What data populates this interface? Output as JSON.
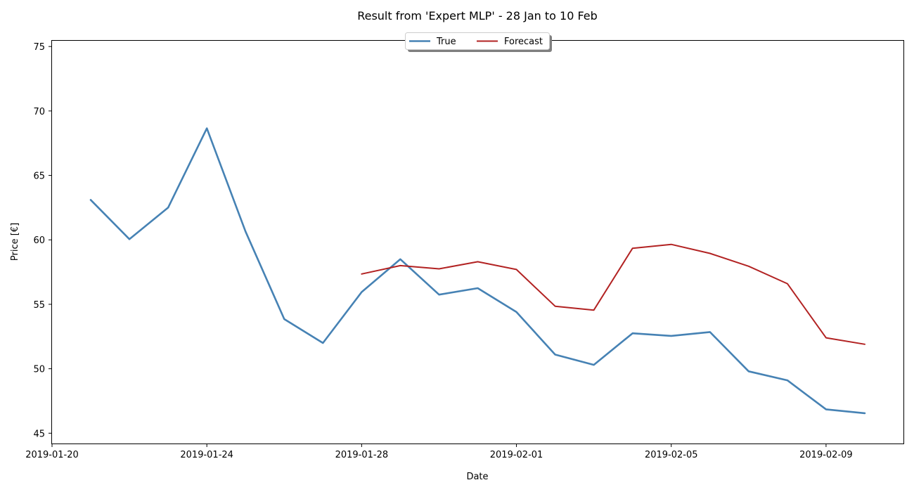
{
  "chart_data": {
    "type": "line",
    "title": "Result from 'Expert MLP' - 28 Jan to 10 Feb",
    "xlabel": "Date",
    "ylabel": "Price [€]",
    "xlim": [
      "2019-01-20",
      "2019-02-11"
    ],
    "ylim": [
      44.2,
      75.5
    ],
    "x_ticks": [
      "2019-01-20",
      "2019-01-24",
      "2019-01-28",
      "2019-02-01",
      "2019-02-05",
      "2019-02-09"
    ],
    "y_ticks": [
      45,
      50,
      55,
      60,
      65,
      70,
      75
    ],
    "legend_position": "top-center",
    "grid": false,
    "series": [
      {
        "name": "True",
        "color": "#4682b4",
        "x": [
          "2019-01-21",
          "2019-01-22",
          "2019-01-23",
          "2019-01-24",
          "2019-01-25",
          "2019-01-26",
          "2019-01-27",
          "2019-01-28",
          "2019-01-29",
          "2019-01-30",
          "2019-01-31",
          "2019-02-01",
          "2019-02-02",
          "2019-02-03",
          "2019-02-04",
          "2019-02-05",
          "2019-02-06",
          "2019-02-07",
          "2019-02-08",
          "2019-02-09",
          "2019-02-10"
        ],
        "values": [
          63.1,
          60.05,
          62.5,
          68.65,
          60.65,
          53.85,
          52.0,
          55.95,
          58.5,
          55.75,
          56.25,
          54.4,
          51.1,
          50.3,
          52.75,
          52.55,
          52.85,
          49.8,
          49.1,
          46.85,
          46.55
        ]
      },
      {
        "name": "Forecast",
        "color": "#b22222",
        "x": [
          "2019-01-28",
          "2019-01-29",
          "2019-01-30",
          "2019-01-31",
          "2019-02-01",
          "2019-02-02",
          "2019-02-03",
          "2019-02-04",
          "2019-02-05",
          "2019-02-06",
          "2019-02-07",
          "2019-02-08",
          "2019-02-09",
          "2019-02-10"
        ],
        "values": [
          57.35,
          58.0,
          57.75,
          58.3,
          57.7,
          54.85,
          54.55,
          59.35,
          59.65,
          58.95,
          57.95,
          56.6,
          52.4,
          51.9
        ]
      }
    ]
  }
}
